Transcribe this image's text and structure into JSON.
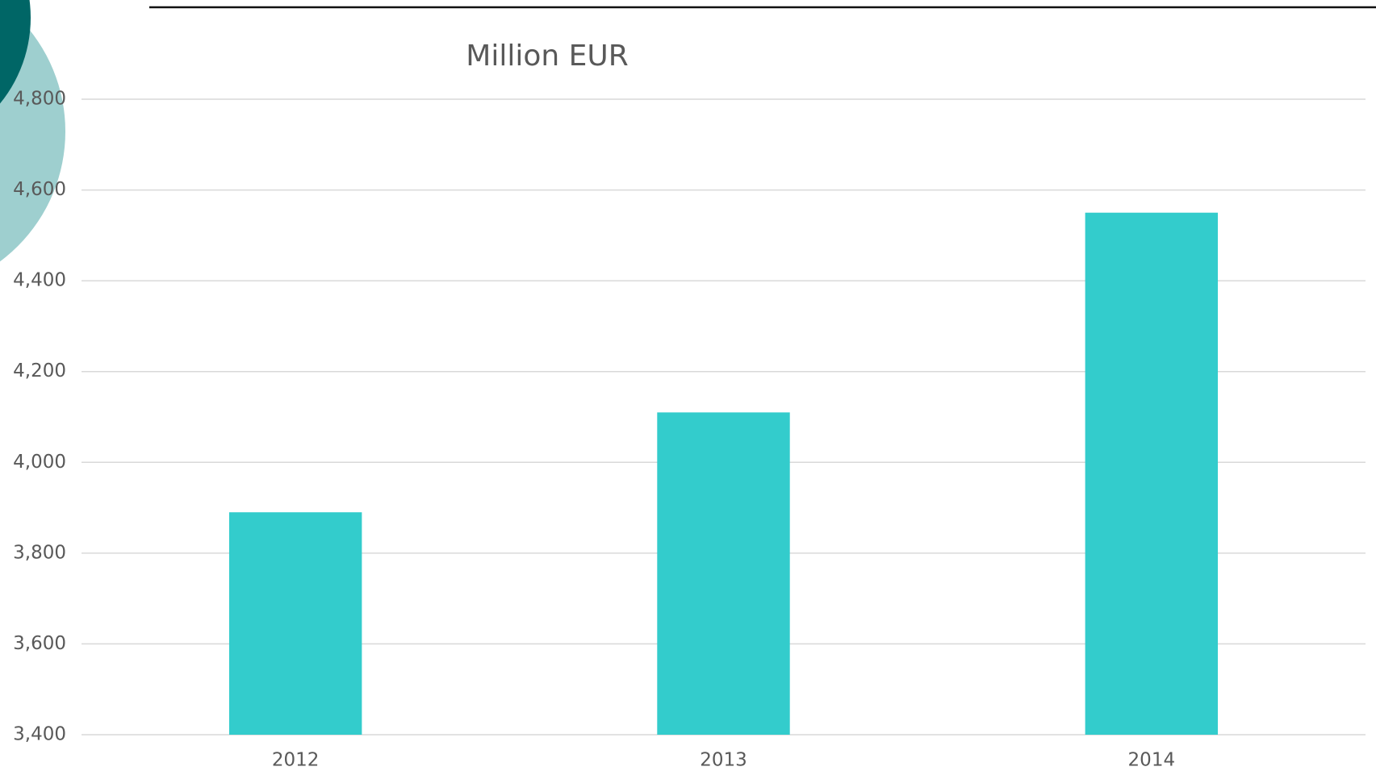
{
  "chart_data": {
    "type": "bar",
    "title": "Million EUR",
    "categories": [
      "2012",
      "2013",
      "2014"
    ],
    "values": [
      3890,
      4110,
      4550
    ],
    "color": "#33cccc",
    "ylim": [
      3400,
      4800
    ],
    "yticks": [
      {
        "value": 3400,
        "label": "3,400"
      },
      {
        "value": 3600,
        "label": "3,600"
      },
      {
        "value": 3800,
        "label": "3,800"
      },
      {
        "value": 4000,
        "label": "4,000"
      },
      {
        "value": 4200,
        "label": "4,200"
      },
      {
        "value": 4400,
        "label": "4,400"
      },
      {
        "value": 4600,
        "label": "4,600"
      },
      {
        "value": 4800,
        "label": "4,800"
      }
    ],
    "grid": true
  }
}
